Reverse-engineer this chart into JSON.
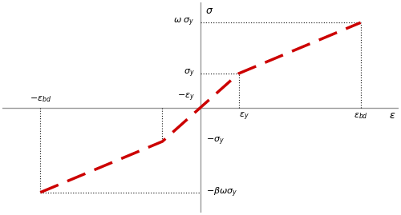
{
  "curve_color": "#cc0000",
  "dotted_color": "#222222",
  "axis_color": "#999999",
  "background_color": "#ffffff",
  "eps_y": 1.0,
  "eps_bd": 4.2,
  "sigma_y": 1.0,
  "omega_sigma_y": 2.5,
  "beta_omega_sigma_y": 2.5,
  "xlim": [
    -5.2,
    5.2
  ],
  "ylim": [
    -3.1,
    3.1
  ]
}
